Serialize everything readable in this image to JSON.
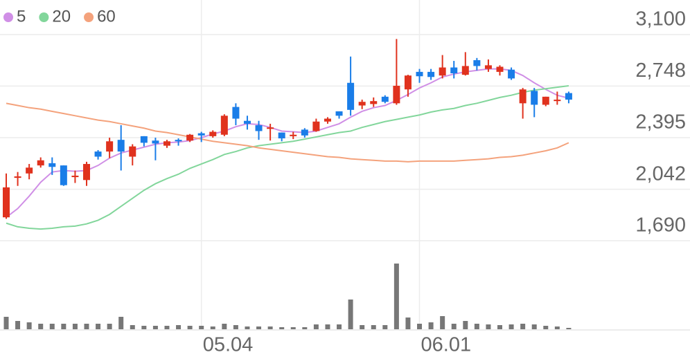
{
  "chart_data": {
    "type": "candlestick",
    "categories": [
      null,
      null,
      null,
      null,
      null,
      null,
      null,
      null,
      null,
      null,
      null,
      null,
      null,
      null,
      null,
      null,
      null,
      "05.04",
      null,
      null,
      null,
      null,
      null,
      null,
      null,
      null,
      null,
      null,
      null,
      null,
      null,
      null,
      null,
      null,
      null,
      null,
      "06.01",
      null,
      null,
      null,
      null,
      null,
      null,
      null,
      null,
      null,
      null,
      null,
      null,
      null
    ],
    "open": [
      1850,
      2120,
      2150,
      2205,
      2220,
      2205,
      2125,
      2105,
      2300,
      2300,
      2380,
      2265,
      2405,
      2375,
      2340,
      2380,
      2375,
      2425,
      2405,
      2415,
      2605,
      2510,
      2480,
      2455,
      2430,
      2405,
      2450,
      2440,
      2505,
      2575,
      2770,
      2615,
      2625,
      2675,
      2630,
      2725,
      2845,
      2845,
      2820,
      2875,
      2825,
      2925,
      2865,
      2845,
      2860,
      2630,
      2715,
      2620,
      2645,
      2700
    ],
    "high": [
      2150,
      2160,
      2215,
      2260,
      2260,
      2205,
      2170,
      2230,
      2310,
      2395,
      2480,
      2350,
      2405,
      2395,
      2380,
      2390,
      2420,
      2435,
      2445,
      2555,
      2630,
      2545,
      2510,
      2490,
      2430,
      2435,
      2460,
      2525,
      2535,
      2575,
      2950,
      2655,
      2670,
      2685,
      3070,
      2825,
      2865,
      2865,
      2960,
      2920,
      2980,
      2940,
      2930,
      2890,
      2875,
      2735,
      2735,
      2675,
      2710,
      2710
    ],
    "low": [
      1840,
      2065,
      2110,
      2190,
      2140,
      2065,
      2085,
      2065,
      2245,
      2255,
      2170,
      2205,
      2335,
      2240,
      2325,
      2340,
      2365,
      2365,
      2395,
      2405,
      2480,
      2450,
      2380,
      2375,
      2370,
      2385,
      2395,
      2435,
      2490,
      2525,
      2545,
      2590,
      2605,
      2630,
      2620,
      2675,
      2770,
      2790,
      2800,
      2800,
      2820,
      2855,
      2845,
      2820,
      2790,
      2525,
      2535,
      2610,
      2620,
      2630
    ],
    "close": [
      2055,
      2130,
      2190,
      2240,
      2195,
      2070,
      2135,
      2215,
      2265,
      2370,
      2300,
      2335,
      2360,
      2355,
      2370,
      2370,
      2415,
      2410,
      2435,
      2545,
      2525,
      2490,
      2440,
      2465,
      2390,
      2415,
      2410,
      2505,
      2525,
      2545,
      2585,
      2640,
      2645,
      2640,
      2750,
      2820,
      2815,
      2810,
      2875,
      2835,
      2885,
      2885,
      2890,
      2880,
      2800,
      2725,
      2620,
      2675,
      2655,
      2655
    ],
    "up_color": "#e0321e",
    "down_color": "#1a7de8",
    "series": [
      {
        "name": "5",
        "color": "#d08fe6",
        "values": [
          1850,
          1910,
          1995,
          2090,
          2160,
          2170,
          2165,
          2170,
          2205,
          2255,
          2290,
          2310,
          2330,
          2350,
          2360,
          2365,
          2375,
          2395,
          2420,
          2440,
          2470,
          2490,
          2485,
          2465,
          2440,
          2435,
          2430,
          2440,
          2465,
          2490,
          2535,
          2575,
          2600,
          2615,
          2650,
          2690,
          2735,
          2770,
          2810,
          2830,
          2845,
          2855,
          2865,
          2865,
          2855,
          2820,
          2770,
          2725,
          2685,
          2665
        ]
      },
      {
        "name": "20",
        "color": "#82d69b",
        "values": [
          1810,
          1785,
          1775,
          1770,
          1775,
          1785,
          1790,
          1805,
          1830,
          1870,
          1925,
          1980,
          2035,
          2080,
          2115,
          2145,
          2185,
          2215,
          2245,
          2280,
          2300,
          2325,
          2340,
          2350,
          2360,
          2370,
          2385,
          2400,
          2415,
          2430,
          2440,
          2465,
          2485,
          2505,
          2520,
          2535,
          2550,
          2570,
          2585,
          2595,
          2615,
          2630,
          2650,
          2670,
          2685,
          2705,
          2720,
          2730,
          2740,
          2750
        ]
      },
      {
        "name": "60",
        "color": "#f4a27c",
        "values": [
          2630,
          2615,
          2600,
          2590,
          2575,
          2560,
          2545,
          2530,
          2515,
          2505,
          2490,
          2475,
          2460,
          2440,
          2430,
          2415,
          2400,
          2385,
          2370,
          2360,
          2350,
          2340,
          2325,
          2315,
          2305,
          2295,
          2285,
          2275,
          2265,
          2260,
          2250,
          2245,
          2240,
          2235,
          2235,
          2230,
          2235,
          2235,
          2235,
          2235,
          2240,
          2245,
          2250,
          2260,
          2265,
          2275,
          2290,
          2305,
          2325,
          2360
        ]
      }
    ],
    "volume": {
      "color": "#777777",
      "values": [
        18,
        12,
        10,
        8,
        8,
        8,
        8,
        8,
        8,
        8,
        18,
        6,
        5,
        5,
        5,
        6,
        5,
        5,
        4,
        8,
        6,
        4,
        4,
        4,
        3,
        3,
        3,
        7,
        7,
        7,
        43,
        6,
        6,
        6,
        95,
        17,
        8,
        10,
        19,
        8,
        12,
        8,
        7,
        6,
        7,
        8,
        7,
        5,
        4,
        2
      ]
    },
    "ylim": [
      1690,
      3100
    ],
    "yticks": [
      {
        "value": 3100,
        "label": "3,100"
      },
      {
        "value": 2748,
        "label": "2,748"
      },
      {
        "value": 2395,
        "label": "2,395"
      },
      {
        "value": 2042,
        "label": "2,042"
      },
      {
        "value": 1690,
        "label": "1,690"
      }
    ],
    "grid": true
  }
}
